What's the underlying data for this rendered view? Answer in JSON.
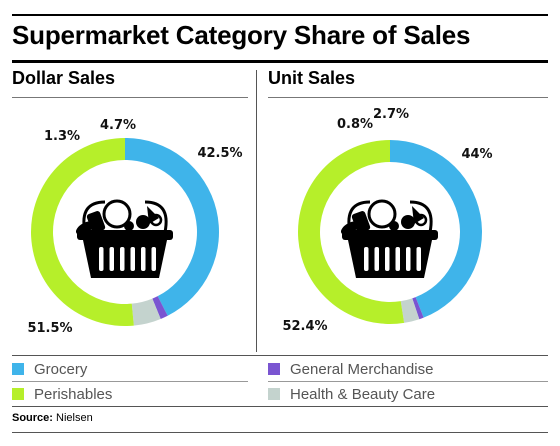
{
  "title": "Supermarket Category Share of Sales",
  "source": {
    "label": "Source:",
    "value": "Nielsen"
  },
  "colors": {
    "Grocery": "#3fb4ea",
    "General Merchandise": "#7a55d1",
    "Health & Beauty Care": "#c4d3ce",
    "Perishables": "#b6ef2a"
  },
  "chart_data": [
    {
      "type": "pie",
      "title": "Dollar Sales",
      "categories": [
        "Grocery",
        "General Merchandise",
        "Health & Beauty Care",
        "Perishables"
      ],
      "values": [
        42.5,
        1.3,
        4.7,
        51.5
      ],
      "labels": [
        "42.5%",
        "1.3%",
        "4.7%",
        "51.5%"
      ]
    },
    {
      "type": "pie",
      "title": "Unit Sales",
      "categories": [
        "Grocery",
        "General Merchandise",
        "Health & Beauty Care",
        "Perishables"
      ],
      "values": [
        44,
        0.8,
        2.7,
        52.4
      ],
      "labels": [
        "44%",
        "0.8%",
        "2.7%",
        "52.4%"
      ]
    }
  ],
  "legend": [
    {
      "name": "Grocery",
      "color": "#3fb4ea"
    },
    {
      "name": "Perishables",
      "color": "#b6ef2a"
    },
    {
      "name": "General Merchandise",
      "color": "#7a55d1"
    },
    {
      "name": "Health & Beauty Care",
      "color": "#c4d3ce"
    }
  ],
  "icons": [
    "grocery-basket-icon",
    "grocery-basket-icon"
  ]
}
